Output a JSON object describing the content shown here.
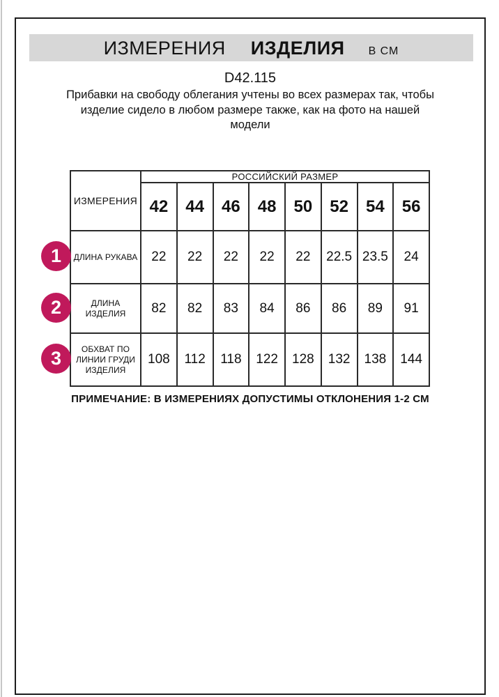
{
  "header": {
    "title_main": "ИЗМЕРЕНИЯ",
    "title_secondary": "ИЗДЕЛИЯ",
    "units": "В СМ"
  },
  "product_code": "D42.115",
  "description": "Прибавки на свободу облегания учтены во всех размерах так, чтобы изделие сидело в любом размере также, как на фото на нашей модели",
  "table": {
    "measurements_header": "ИЗМЕРЕНИЯ",
    "size_system_header": "РОССИЙСКИЙ РАЗМЕР",
    "sizes": [
      "42",
      "44",
      "46",
      "48",
      "50",
      "52",
      "54",
      "56"
    ],
    "rows": [
      {
        "marker": "1",
        "label": "ДЛИНА РУКАВА",
        "values": [
          "22",
          "22",
          "22",
          "22",
          "22",
          "22.5",
          "23.5",
          "24"
        ]
      },
      {
        "marker": "2",
        "label": "ДЛИНА\nИЗДЕЛИЯ",
        "values": [
          "82",
          "82",
          "83",
          "84",
          "86",
          "86",
          "89",
          "91"
        ]
      },
      {
        "marker": "3",
        "label": "ОБХВАТ ПО\nЛИНИИ ГРУДИ\nИЗДЕЛИЯ",
        "values": [
          "108",
          "112",
          "118",
          "122",
          "128",
          "132",
          "138",
          "144"
        ]
      }
    ]
  },
  "note": "ПРИМЕЧАНИЕ: В ИЗМЕРЕНИЯХ ДОПУСТИМЫ ОТКЛОНЕНИЯ 1-2 СМ",
  "colors": {
    "marker_background": "#c0195b",
    "title_bar_background": "#d7d7d7",
    "border": "#1c1c1c"
  }
}
